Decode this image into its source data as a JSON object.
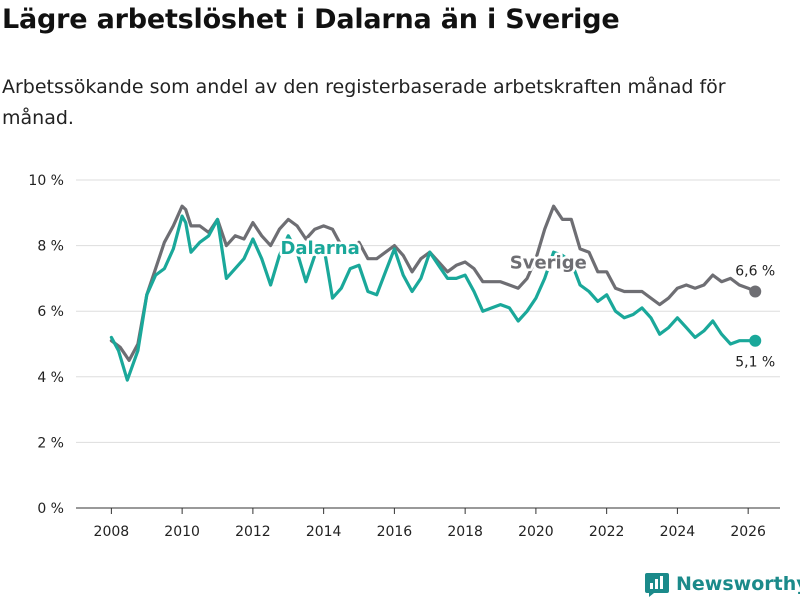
{
  "title": "Lägre arbetslöshet i Dalarna än i Sverige",
  "subtitle": "Arbetssökande som andel av den registerbaserade arbetskraften månad för månad.",
  "brand": "Newsworthy",
  "colors": {
    "dalarna": "#1aa89a",
    "sverige": "#6e6e73",
    "grid": "#dddddd",
    "brand": "#1b8a8a"
  },
  "chart_data": {
    "type": "line",
    "title": "Lägre arbetslöshet i Dalarna än i Sverige",
    "xlabel": "",
    "ylabel": "",
    "ylim": [
      0,
      10
    ],
    "xlim": [
      2007.0,
      2026.9
    ],
    "grid": true,
    "y_ticks": [
      0,
      2,
      4,
      6,
      8,
      10
    ],
    "y_tick_labels": [
      "0 %",
      "2 %",
      "4 %",
      "6 %",
      "8 %",
      "10 %"
    ],
    "x_ticks": [
      2008,
      2010,
      2012,
      2014,
      2016,
      2018,
      2020,
      2022,
      2024,
      2026
    ],
    "x_tick_labels": [
      "2008",
      "2010",
      "2012",
      "2014",
      "2016",
      "2018",
      "2020",
      "2022",
      "2024",
      "2026"
    ],
    "series": [
      {
        "name": "Sverige",
        "label": "Sverige",
        "end_label": "6,6 %",
        "x": [
          2008.0,
          2008.25,
          2008.5,
          2008.75,
          2009.0,
          2009.25,
          2009.5,
          2009.75,
          2010.0,
          2010.1,
          2010.25,
          2010.5,
          2010.75,
          2011.0,
          2011.25,
          2011.5,
          2011.75,
          2012.0,
          2012.25,
          2012.5,
          2012.75,
          2013.0,
          2013.25,
          2013.5,
          2013.75,
          2014.0,
          2014.25,
          2014.5,
          2014.75,
          2015.0,
          2015.25,
          2015.5,
          2015.75,
          2016.0,
          2016.25,
          2016.5,
          2016.75,
          2017.0,
          2017.25,
          2017.5,
          2017.75,
          2018.0,
          2018.25,
          2018.5,
          2018.75,
          2019.0,
          2019.25,
          2019.5,
          2019.75,
          2020.0,
          2020.25,
          2020.5,
          2020.75,
          2021.0,
          2021.25,
          2021.5,
          2021.75,
          2022.0,
          2022.25,
          2022.5,
          2022.75,
          2023.0,
          2023.25,
          2023.5,
          2023.75,
          2024.0,
          2024.25,
          2024.5,
          2024.75,
          2025.0,
          2025.25,
          2025.5,
          2025.75,
          2026.0,
          2026.2
        ],
        "values": [
          5.1,
          4.9,
          4.5,
          5.0,
          6.5,
          7.3,
          8.1,
          8.6,
          9.2,
          9.1,
          8.6,
          8.6,
          8.4,
          8.8,
          8.0,
          8.3,
          8.2,
          8.7,
          8.3,
          8.0,
          8.5,
          8.8,
          8.6,
          8.2,
          8.5,
          8.6,
          8.5,
          8.0,
          7.8,
          8.1,
          7.6,
          7.6,
          7.8,
          8.0,
          7.7,
          7.2,
          7.6,
          7.8,
          7.5,
          7.2,
          7.4,
          7.5,
          7.3,
          6.9,
          6.9,
          6.9,
          6.8,
          6.7,
          7.0,
          7.6,
          8.5,
          9.2,
          8.8,
          8.8,
          7.9,
          7.8,
          7.2,
          7.2,
          6.7,
          6.6,
          6.6,
          6.6,
          6.4,
          6.2,
          6.4,
          6.7,
          6.8,
          6.7,
          6.8,
          7.1,
          6.9,
          7.0,
          6.8,
          6.7,
          6.6
        ]
      },
      {
        "name": "Dalarna",
        "label": "Dalarna",
        "end_label": "5,1 %",
        "x": [
          2008.0,
          2008.2,
          2008.45,
          2008.75,
          2009.0,
          2009.25,
          2009.5,
          2009.75,
          2010.0,
          2010.1,
          2010.25,
          2010.5,
          2010.75,
          2011.0,
          2011.25,
          2011.5,
          2011.75,
          2012.0,
          2012.25,
          2012.5,
          2012.75,
          2013.0,
          2013.25,
          2013.5,
          2013.75,
          2014.0,
          2014.25,
          2014.5,
          2014.75,
          2015.0,
          2015.25,
          2015.5,
          2015.75,
          2016.0,
          2016.25,
          2016.5,
          2016.75,
          2017.0,
          2017.25,
          2017.5,
          2017.75,
          2018.0,
          2018.25,
          2018.5,
          2018.75,
          2019.0,
          2019.25,
          2019.5,
          2019.75,
          2020.0,
          2020.25,
          2020.5,
          2020.75,
          2021.0,
          2021.25,
          2021.5,
          2021.75,
          2022.0,
          2022.25,
          2022.5,
          2022.75,
          2023.0,
          2023.25,
          2023.5,
          2023.75,
          2024.0,
          2024.25,
          2024.5,
          2024.75,
          2025.0,
          2025.25,
          2025.5,
          2025.75,
          2026.0,
          2026.2
        ],
        "values": [
          5.2,
          4.8,
          3.9,
          4.8,
          6.5,
          7.1,
          7.3,
          7.9,
          8.9,
          8.7,
          7.8,
          8.1,
          8.3,
          8.8,
          7.0,
          7.3,
          7.6,
          8.2,
          7.6,
          6.8,
          7.7,
          8.3,
          7.8,
          6.9,
          7.7,
          8.0,
          6.4,
          6.7,
          7.3,
          7.4,
          6.6,
          6.5,
          7.2,
          7.9,
          7.1,
          6.6,
          7.0,
          7.8,
          7.4,
          7.0,
          7.0,
          7.1,
          6.6,
          6.0,
          6.1,
          6.2,
          6.1,
          5.7,
          6.0,
          6.4,
          7.0,
          7.8,
          7.7,
          7.5,
          6.8,
          6.6,
          6.3,
          6.5,
          6.0,
          5.8,
          5.9,
          6.1,
          5.8,
          5.3,
          5.5,
          5.8,
          5.5,
          5.2,
          5.4,
          5.7,
          5.3,
          5.0,
          5.1,
          5.1,
          5.1
        ]
      }
    ]
  }
}
